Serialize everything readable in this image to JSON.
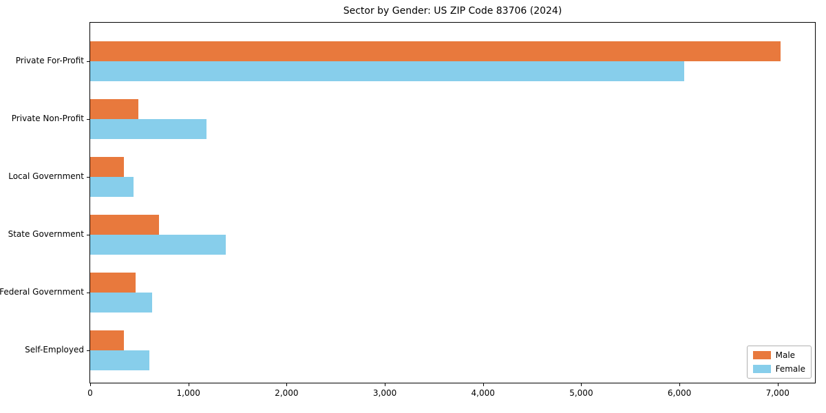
{
  "chart_data": {
    "type": "bar",
    "orientation": "horizontal",
    "title": "Sector by Gender: US ZIP Code 83706 (2024)",
    "categories": [
      "Private For-Profit",
      "Private Non-Profit",
      "Local Government",
      "State Government",
      "Federal Government",
      "Self-Employed"
    ],
    "series": [
      {
        "name": "Male",
        "color": "#e8793d",
        "values": [
          7030,
          490,
          345,
          700,
          460,
          340
        ]
      },
      {
        "name": "Female",
        "color": "#87ceeb",
        "values": [
          6050,
          1185,
          445,
          1380,
          630,
          600
        ]
      }
    ],
    "xlabel": "",
    "ylabel": "",
    "xlim": [
      0,
      7380
    ],
    "x_ticks": [
      0,
      1000,
      2000,
      3000,
      4000,
      5000,
      6000,
      7000
    ],
    "x_tick_labels": [
      "0",
      "1,000",
      "2,000",
      "3,000",
      "4,000",
      "5,000",
      "6,000",
      "7,000"
    ],
    "grid": false,
    "legend": {
      "position": "lower right",
      "entries": [
        "Male",
        "Female"
      ]
    },
    "colors": {
      "male": "#e8793d",
      "female": "#87ceeb",
      "axis": "#000000",
      "background": "#ffffff"
    }
  }
}
